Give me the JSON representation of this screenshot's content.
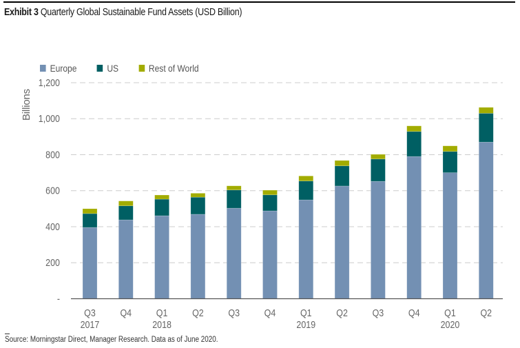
{
  "title": {
    "bold": "Exhibit 3",
    "text": "Quarterly Global Sustainable Fund Assets (USD Billion)"
  },
  "source": "Source: Morningstar Direct, Manager Research. Data as of June 2020.",
  "colors": {
    "europe": "#7390b3",
    "us": "#005f63",
    "rest_of_world": "#a2ac00",
    "grid": "#cccccc",
    "axis": "#555555",
    "text": "#666666"
  },
  "chart_data": {
    "type": "bar",
    "stacked": true,
    "title": "Exhibit 3 Quarterly Global Sustainable Fund Assets (USD Billion)",
    "xlabel": "",
    "ylabel": "Billions",
    "ylim": [
      0,
      1200
    ],
    "yticks": [
      0,
      200,
      400,
      600,
      800,
      1000,
      1200
    ],
    "ytick_labels": [
      "-",
      "200",
      "400",
      "600",
      "800",
      "1,000",
      "1,200"
    ],
    "grid": true,
    "legend_position": "top-left",
    "categories": [
      "Q3 2017",
      "Q4 2017",
      "Q1 2018",
      "Q2 2018",
      "Q3 2018",
      "Q4 2018",
      "Q1 2019",
      "Q2 2019",
      "Q3 2019",
      "Q4 2019",
      "Q1 2020",
      "Q2 2020"
    ],
    "category_labels": [
      {
        "quarter": "Q3",
        "year": "2017"
      },
      {
        "quarter": "Q4",
        "year": ""
      },
      {
        "quarter": "Q1",
        "year": "2018"
      },
      {
        "quarter": "Q2",
        "year": ""
      },
      {
        "quarter": "Q3",
        "year": ""
      },
      {
        "quarter": "Q4",
        "year": ""
      },
      {
        "quarter": "Q1",
        "year": "2019"
      },
      {
        "quarter": "Q2",
        "year": ""
      },
      {
        "quarter": "Q3",
        "year": ""
      },
      {
        "quarter": "Q4",
        "year": ""
      },
      {
        "quarter": "Q1",
        "year": "2020"
      },
      {
        "quarter": "Q2",
        "year": ""
      }
    ],
    "series": [
      {
        "name": "Europe",
        "color_key": "europe",
        "values": [
          396,
          438,
          461,
          469,
          503,
          488,
          549,
          626,
          652,
          790,
          700,
          870
        ]
      },
      {
        "name": "US",
        "color_key": "us",
        "values": [
          77,
          78,
          92,
          95,
          101,
          89,
          105,
          112,
          124,
          139,
          118,
          160
        ]
      },
      {
        "name": "Rest of World",
        "color_key": "rest_of_world",
        "values": [
          27,
          27,
          23,
          22,
          23,
          26,
          28,
          30,
          26,
          31,
          31,
          33
        ]
      }
    ]
  }
}
